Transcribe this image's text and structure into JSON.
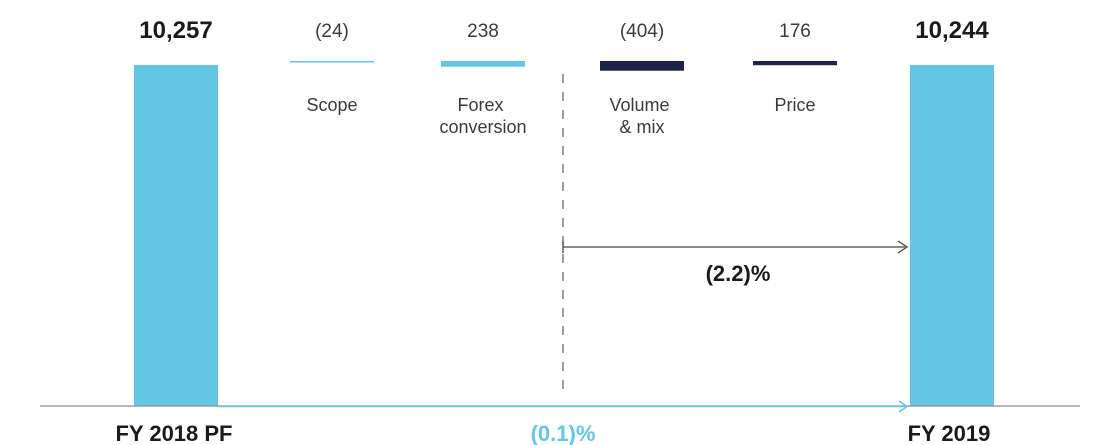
{
  "colors": {
    "light_blue": "#65c6e3",
    "navy": "#1e2448",
    "axis_gray": "#8a8a8a",
    "text_dark": "#1a1a1a",
    "text_body": "#3a3a3a",
    "dash_gray": "#666666",
    "arrow_gray": "#444444"
  },
  "chart_data": {
    "type": "waterfall",
    "start": {
      "label": "FY 2018 PF",
      "value": 10257,
      "display": "10,257"
    },
    "end": {
      "label": "FY 2019",
      "value": 10244,
      "display": "10,244"
    },
    "steps": [
      {
        "lines": [
          "Scope"
        ],
        "value": -24,
        "display": "(24)",
        "color_key": "light_blue"
      },
      {
        "lines": [
          "Forex",
          "conversion"
        ],
        "value": 238,
        "display": "238",
        "color_key": "light_blue"
      },
      {
        "lines": [
          "Volume",
          "& mix"
        ],
        "value": -404,
        "display": "(404)",
        "color_key": "navy"
      },
      {
        "lines": [
          "Price"
        ],
        "value": 176,
        "display": "176",
        "color_key": "navy"
      }
    ],
    "annotations": {
      "organic_change": "(2.2)%",
      "total_change": "(0.1)%"
    }
  }
}
